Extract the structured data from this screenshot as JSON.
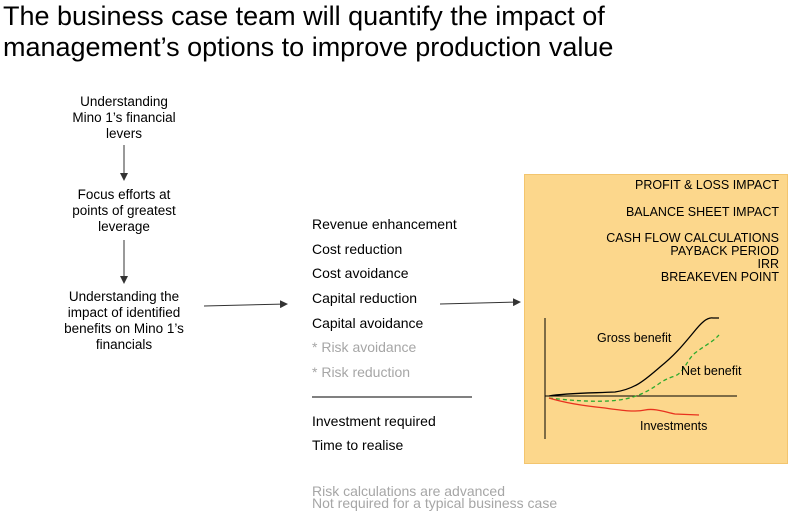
{
  "title": {
    "line1": "The business case team will quantify the impact of",
    "line2": "management’s options to improve production value"
  },
  "flow": {
    "step1": [
      "Understanding",
      "Mino 1’s financial",
      "levers"
    ],
    "step2": [
      "Focus efforts at",
      "points of greatest",
      "leverage"
    ],
    "step3": [
      "Understanding the",
      "impact of identified",
      "benefits on Mino 1’s",
      "financials"
    ]
  },
  "benefits": {
    "items": [
      {
        "label": "Revenue enhancement"
      },
      {
        "label": "Cost reduction"
      },
      {
        "label": "Cost avoidance"
      },
      {
        "label": "Capital reduction"
      },
      {
        "label": "Capital avoidance"
      },
      {
        "label": "* Risk avoidance"
      },
      {
        "label": "* Risk reduction"
      }
    ],
    "investment_label": "Investment required",
    "time_label": "Time to realise"
  },
  "panel": {
    "pl": "PROFIT & LOSS IMPACT",
    "bs": "BALANCE SHEET IMPACT",
    "cf": [
      "CASH FLOW CALCULATIONS",
      "PAYBACK PERIOD",
      "IRR",
      "BREAKEVEN POINT"
    ],
    "chart": {
      "gross_label": "Gross benefit",
      "net_label": "Net benefit",
      "investments_label": "Investments"
    }
  },
  "footnote": {
    "line1": "Risk calculations are advanced",
    "line2": "Not required for a typical business case"
  },
  "colors": {
    "panel_bg": "#fcd78c",
    "gross": "#000000",
    "net": "#2eaa2e",
    "investments": "#e8321e",
    "grey_text": "#a6a6a6"
  }
}
